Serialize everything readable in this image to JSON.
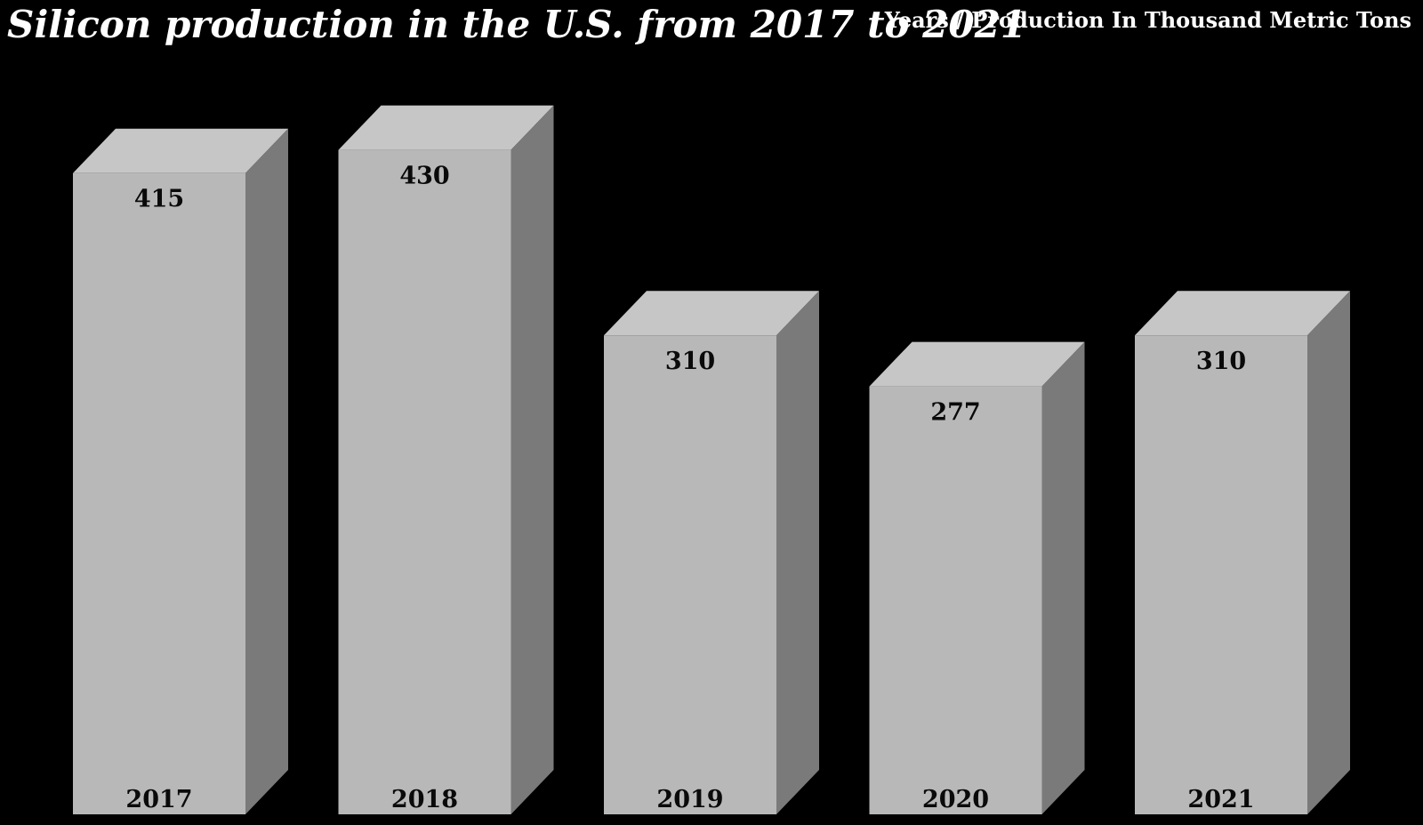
{
  "header": {
    "title": "Silicon production in the U.S. from 2017 to 2021",
    "axis_note": "Years / Production In Thousand Metric Tons"
  },
  "colors": {
    "background": "#000000",
    "bar_front": "#b8b8b8",
    "bar_top": "#c6c6c6",
    "bar_side": "#7a7a7a",
    "bar_label": "#0a0a0a",
    "heading_text": "#ffffff"
  },
  "chart_data": {
    "type": "bar",
    "style": "3d-column",
    "title": "Silicon production in the U.S. from 2017 to 2021",
    "xlabel": "Years",
    "ylabel": "Production In Thousand Metric Tons",
    "categories": [
      "2017",
      "2018",
      "2019",
      "2020",
      "2021"
    ],
    "values": [
      415,
      430,
      310,
      277,
      310
    ],
    "ylim": [
      0,
      430
    ],
    "grid": false,
    "legend": "none",
    "data_labels": true,
    "background": "black"
  }
}
